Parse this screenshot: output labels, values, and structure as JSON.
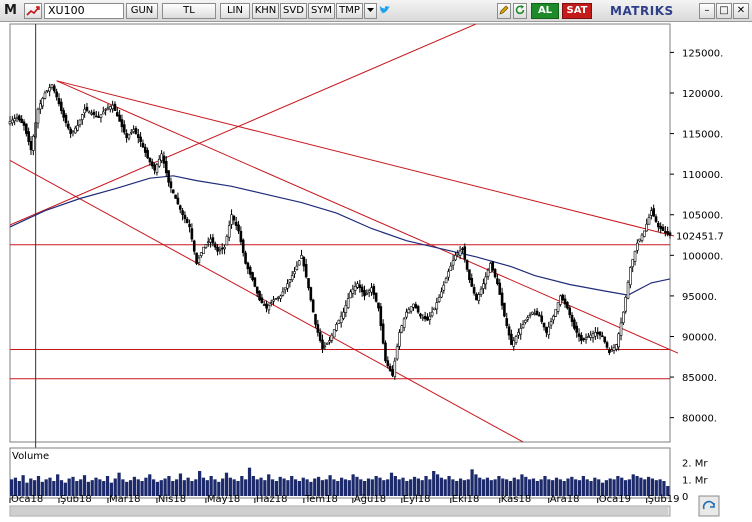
{
  "toolbar": {
    "logo": "M",
    "symbol": "XU100",
    "period": "GUN",
    "currency": "TL",
    "scale": "LIN",
    "btn_khn": "KHN",
    "btn_svd": "SVD",
    "btn_sym": "SYM",
    "btn_tmp": "TMP",
    "buy": "AL",
    "sell": "SAT",
    "brand": "MATRIKS"
  },
  "colors": {
    "price": "#000000",
    "moving_average": "#1f2d7a",
    "trend_lines": "#c8161d",
    "volume": "#1c2a6b",
    "last_price_box": "#000000"
  },
  "chart_data": {
    "type": "candlestick",
    "title": "",
    "ylim": [
      77000,
      128500
    ],
    "y_ticks": [
      80000,
      85000,
      90000,
      95000,
      100000,
      105000,
      110000,
      115000,
      120000,
      125000
    ],
    "y_tick_labels": [
      "80000.",
      "85000.",
      "90000.",
      "95000.",
      "100000.",
      "105000.",
      "110000.",
      "115000.",
      "120000.",
      "125000."
    ],
    "last_price_label": "102451.7",
    "x_labels": [
      "Oca18",
      "Şub18",
      "Mar18",
      "Nis18",
      "May18",
      "Haz18",
      "Tem18",
      "Ağu18",
      "Eyl18",
      "Eki18",
      "Kas18",
      "Ara18",
      "Oca19",
      "Şub19"
    ],
    "price_path": [
      [
        0,
        116500
      ],
      [
        3,
        117000
      ],
      [
        6,
        116000
      ],
      [
        9,
        113000
      ],
      [
        12,
        118000
      ],
      [
        15,
        120000
      ],
      [
        18,
        121000
      ],
      [
        20,
        119500
      ],
      [
        23,
        117000
      ],
      [
        26,
        115000
      ],
      [
        29,
        116000
      ],
      [
        32,
        118000
      ],
      [
        35,
        117500
      ],
      [
        38,
        117000
      ],
      [
        41,
        118000
      ],
      [
        44,
        118500
      ],
      [
        47,
        116500
      ],
      [
        50,
        114500
      ],
      [
        53,
        115500
      ],
      [
        56,
        114000
      ],
      [
        59,
        112000
      ],
      [
        62,
        110500
      ],
      [
        65,
        112500
      ],
      [
        68,
        109000
      ],
      [
        71,
        107000
      ],
      [
        74,
        105000
      ],
      [
        77,
        103500
      ],
      [
        80,
        99000
      ],
      [
        83,
        101000
      ],
      [
        86,
        102000
      ],
      [
        89,
        100500
      ],
      [
        92,
        101000
      ],
      [
        95,
        105000
      ],
      [
        98,
        103000
      ],
      [
        101,
        99000
      ],
      [
        104,
        97000
      ],
      [
        107,
        94500
      ],
      [
        110,
        93500
      ],
      [
        113,
        94500
      ],
      [
        116,
        95000
      ],
      [
        119,
        96500
      ],
      [
        122,
        98000
      ],
      [
        125,
        100000
      ],
      [
        128,
        96000
      ],
      [
        131,
        91500
      ],
      [
        134,
        88500
      ],
      [
        137,
        89500
      ],
      [
        140,
        91500
      ],
      [
        143,
        93000
      ],
      [
        146,
        95500
      ],
      [
        149,
        96500
      ],
      [
        152,
        95000
      ],
      [
        155,
        96000
      ],
      [
        158,
        93500
      ],
      [
        161,
        87000
      ],
      [
        164,
        85200
      ],
      [
        167,
        90500
      ],
      [
        170,
        93000
      ],
      [
        173,
        94000
      ],
      [
        176,
        92500
      ],
      [
        179,
        92000
      ],
      [
        182,
        93500
      ],
      [
        185,
        95500
      ],
      [
        188,
        98000
      ],
      [
        191,
        100000
      ],
      [
        194,
        100800
      ],
      [
        197,
        97000
      ],
      [
        200,
        94500
      ],
      [
        203,
        96500
      ],
      [
        206,
        99000
      ],
      [
        209,
        96500
      ],
      [
        212,
        92500
      ],
      [
        215,
        89000
      ],
      [
        218,
        90500
      ],
      [
        221,
        92000
      ],
      [
        224,
        93000
      ],
      [
        227,
        92500
      ],
      [
        230,
        90500
      ],
      [
        233,
        92500
      ],
      [
        236,
        95000
      ],
      [
        239,
        93500
      ],
      [
        242,
        91000
      ],
      [
        245,
        89500
      ],
      [
        248,
        90000
      ],
      [
        251,
        90500
      ],
      [
        254,
        90000
      ],
      [
        257,
        88000
      ],
      [
        260,
        89000
      ],
      [
        263,
        93000
      ],
      [
        266,
        98500
      ],
      [
        269,
        101500
      ],
      [
        272,
        103000
      ],
      [
        275,
        105500
      ],
      [
        278,
        103500
      ],
      [
        281,
        102800
      ],
      [
        283,
        102452
      ]
    ],
    "x_domain_days": [
      0,
      283
    ],
    "days_per_month": 21,
    "moving_average_path": [
      [
        0,
        103500
      ],
      [
        15,
        105500
      ],
      [
        30,
        107000
      ],
      [
        45,
        108200
      ],
      [
        60,
        109500
      ],
      [
        70,
        109800
      ],
      [
        80,
        109200
      ],
      [
        95,
        108500
      ],
      [
        110,
        107500
      ],
      [
        125,
        106500
      ],
      [
        140,
        105200
      ],
      [
        155,
        103300
      ],
      [
        170,
        101800
      ],
      [
        185,
        100800
      ],
      [
        200,
        99800
      ],
      [
        215,
        98600
      ],
      [
        225,
        97500
      ],
      [
        240,
        96400
      ],
      [
        255,
        95600
      ],
      [
        265,
        95100
      ],
      [
        275,
        96600
      ],
      [
        283,
        97100
      ]
    ],
    "horizontal_levels": [
      101300,
      88400,
      84800
    ],
    "trend_lines": [
      [
        [
          -2,
          103500
        ],
        [
          220,
          131000
        ]
      ],
      [
        [
          20,
          121500
        ],
        [
          290,
          102000
        ]
      ],
      [
        [
          20,
          121500
        ],
        [
          290,
          87500
        ]
      ],
      [
        [
          -2,
          112000
        ],
        [
          220,
          77000
        ]
      ]
    ],
    "vertical_marker_day": 11,
    "volume": {
      "label": "Volume",
      "y_tick_labels": [
        "2. Mr",
        "1. Mr",
        "0"
      ],
      "ylim": [
        0,
        2400000000
      ],
      "values": [
        1000000000,
        1100000000,
        900000000,
        1250000000,
        800000000,
        1050000000,
        950000000,
        1200000000,
        850000000,
        1000000000,
        1100000000,
        900000000,
        1300000000,
        950000000,
        800000000,
        1050000000,
        1150000000,
        900000000,
        1000000000,
        1250000000,
        850000000,
        950000000,
        1100000000,
        1000000000,
        900000000,
        1200000000,
        800000000,
        1050000000,
        1400000000,
        1000000000,
        850000000,
        950000000,
        1150000000,
        1000000000,
        900000000,
        1100000000,
        1300000000,
        1000000000,
        850000000,
        950000000,
        1050000000,
        1200000000,
        900000000,
        1000000000,
        1350000000,
        950000000,
        1100000000,
        900000000,
        1000000000,
        1500000000,
        1100000000,
        950000000,
        1200000000,
        1000000000,
        850000000,
        1050000000,
        1400000000,
        1100000000,
        1000000000,
        900000000,
        1200000000,
        1000000000,
        1700000000,
        1200000000,
        1000000000,
        1100000000,
        950000000,
        1300000000,
        1000000000,
        900000000,
        1150000000,
        1050000000,
        950000000,
        1200000000,
        1000000000,
        900000000,
        1100000000,
        1000000000,
        850000000,
        1050000000,
        1150000000,
        950000000,
        1000000000,
        1250000000,
        1000000000,
        900000000,
        1100000000,
        1000000000,
        950000000,
        1300000000,
        1150000000,
        1000000000,
        900000000,
        1050000000,
        1000000000,
        1200000000,
        1100000000,
        950000000,
        1000000000,
        1400000000,
        1200000000,
        1000000000,
        1100000000,
        900000000,
        1000000000,
        1150000000,
        1050000000,
        950000000,
        1200000000,
        1000000000,
        1500000000,
        1300000000,
        1100000000,
        1000000000,
        1200000000,
        1000000000,
        900000000,
        1050000000,
        950000000,
        1000000000,
        1600000000,
        1300000000,
        1100000000,
        1000000000,
        1100000000,
        950000000,
        1000000000,
        1200000000,
        1050000000,
        1000000000,
        900000000,
        1100000000,
        1000000000,
        1300000000,
        1150000000,
        1000000000,
        1050000000,
        900000000,
        1000000000,
        1200000000,
        1000000000,
        950000000,
        1100000000,
        1000000000,
        900000000,
        1050000000,
        1150000000,
        1000000000,
        950000000,
        1200000000,
        1000000000,
        900000000,
        1100000000,
        1000000000,
        800000000,
        950000000,
        1050000000,
        1000000000,
        1200000000,
        1100000000,
        950000000,
        1000000000,
        1300000000,
        1200000000,
        1100000000,
        1000000000,
        1150000000,
        1050000000,
        950000000,
        1000000000,
        900000000,
        600000000
      ]
    }
  }
}
